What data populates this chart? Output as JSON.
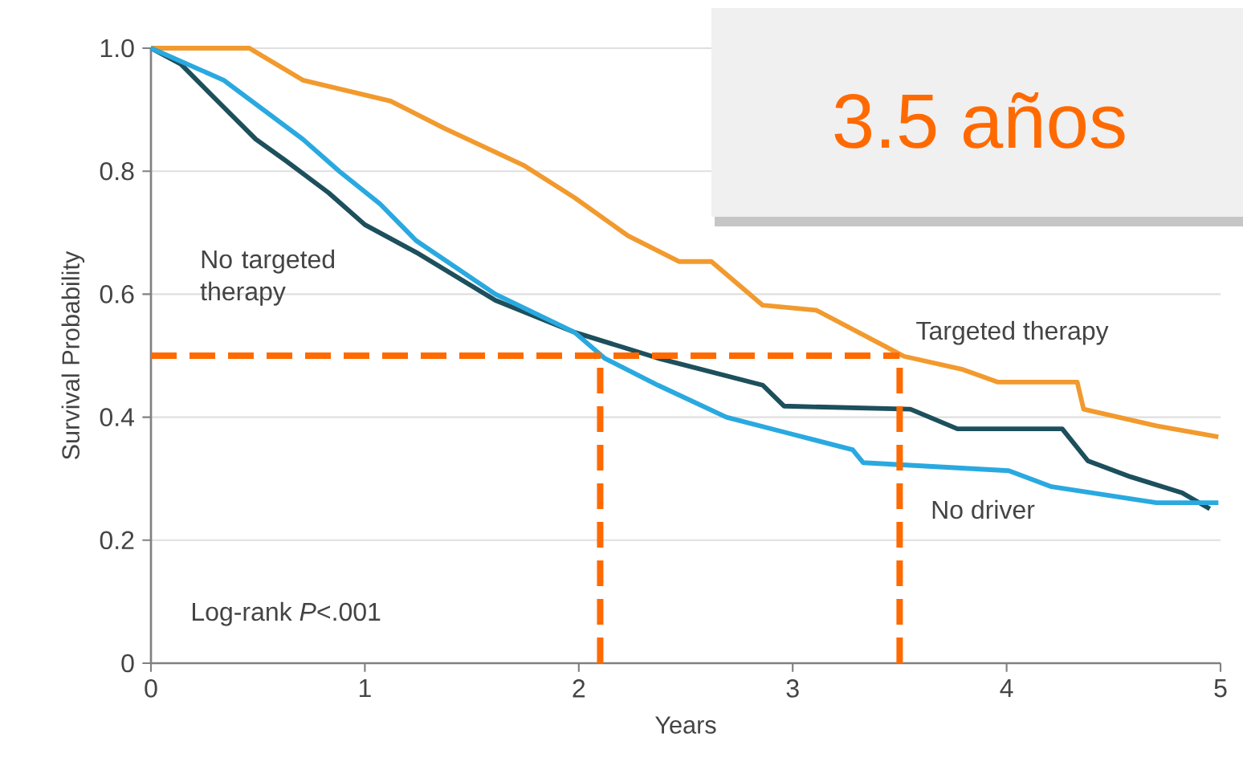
{
  "chart_data": {
    "type": "line",
    "xlabel": "Years",
    "ylabel": "Survival Probability",
    "xlim": [
      0,
      5
    ],
    "ylim": [
      0,
      1.0
    ],
    "xticks": [
      0,
      1,
      2,
      3,
      4,
      5
    ],
    "yticks": [
      0,
      {
        "value": 0.2,
        "label": "0.2"
      },
      {
        "value": 0.4,
        "label": "0.4"
      },
      {
        "value": 0.6,
        "label": "0.6"
      },
      {
        "value": 0.8,
        "label": "0.8"
      },
      {
        "value": 1.0,
        "label": "1.0"
      }
    ],
    "grid": "y",
    "marker": "none",
    "series": [
      {
        "name": "Targeted therapy",
        "color": "#f29a2e",
        "x": [
          0,
          0.46,
          0.71,
          1.12,
          1.37,
          1.74,
          1.98,
          2.23,
          2.47,
          2.62,
          2.86,
          3.11,
          3.45,
          3.52,
          3.79,
          3.96,
          4.33,
          4.36,
          4.7,
          4.99
        ],
        "values": [
          1.0,
          1.0,
          0.948,
          0.914,
          0.87,
          0.81,
          0.757,
          0.695,
          0.653,
          0.653,
          0.582,
          0.574,
          0.512,
          0.499,
          0.478,
          0.457,
          0.457,
          0.413,
          0.386,
          0.368
        ]
      },
      {
        "name": "No targeted therapy",
        "color": "#1d4f5c",
        "x": [
          0,
          0.14,
          0.34,
          0.49,
          0.63,
          0.83,
          1.0,
          1.24,
          1.61,
          1.98,
          2.37,
          2.86,
          2.96,
          3.55,
          3.77,
          4.26,
          4.38,
          4.58,
          4.82,
          4.95
        ],
        "values": [
          1.0,
          0.974,
          0.904,
          0.852,
          0.817,
          0.765,
          0.713,
          0.668,
          0.59,
          0.538,
          0.496,
          0.452,
          0.418,
          0.413,
          0.381,
          0.381,
          0.329,
          0.303,
          0.277,
          0.251
        ]
      },
      {
        "name": "No driver",
        "color": "#2aa9e0",
        "x": [
          0,
          0.34,
          0.51,
          0.71,
          0.88,
          1.07,
          1.24,
          1.61,
          1.98,
          2.12,
          2.37,
          2.69,
          2.99,
          3.28,
          3.33,
          4.01,
          4.21,
          4.7,
          4.99
        ],
        "values": [
          1.0,
          0.948,
          0.904,
          0.852,
          0.8,
          0.747,
          0.687,
          0.6,
          0.538,
          0.496,
          0.452,
          0.4,
          0.373,
          0.347,
          0.326,
          0.313,
          0.287,
          0.261,
          0.261
        ]
      }
    ],
    "ref_lines": [
      {
        "axis": "y",
        "value": 0.5,
        "color": "#ff6a00",
        "line_style": "dashed"
      },
      {
        "axis": "x",
        "value": 2.1,
        "color": "#ff6a00",
        "line_style": "dashed"
      },
      {
        "axis": "x",
        "value": 3.5,
        "color": "#ff6a00",
        "line_style": "dashed"
      }
    ],
    "annotations": [
      "Log-rank *P*<.001",
      "3.5 años"
    ]
  }
}
